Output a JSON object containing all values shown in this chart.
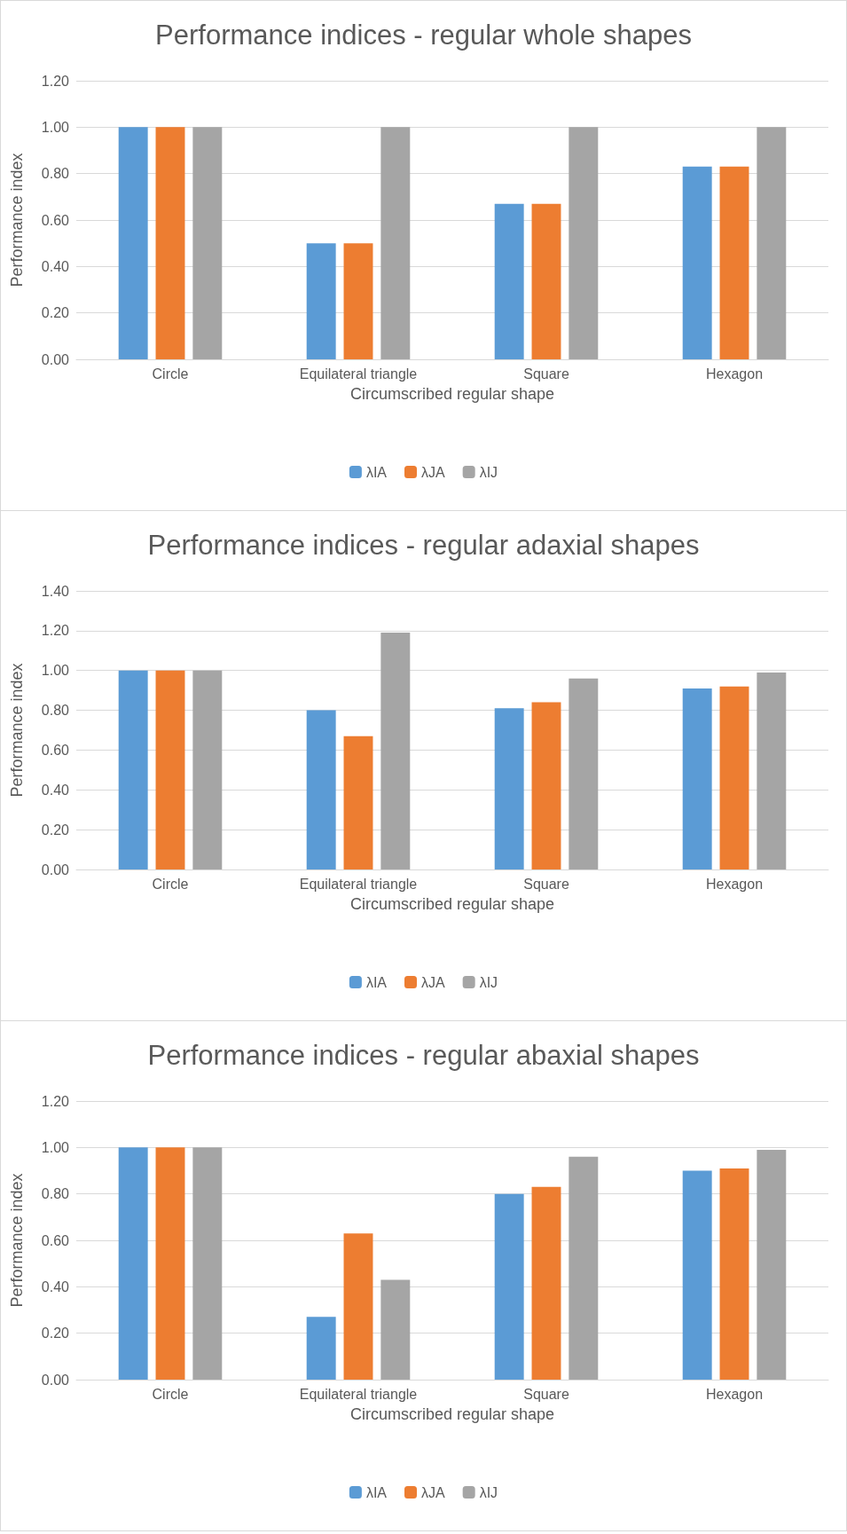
{
  "chart_data": [
    {
      "type": "bar",
      "title": "Performance indices - regular whole shapes",
      "xlabel": "Circumscribed regular shape",
      "ylabel": "Performance index",
      "categories": [
        "Circle",
        "Equilateral triangle",
        "Square",
        "Hexagon"
      ],
      "series": [
        {
          "name": "λIA",
          "color": "#5b9bd5",
          "values": [
            1.0,
            0.5,
            0.67,
            0.83
          ]
        },
        {
          "name": "λJA",
          "color": "#ed7d31",
          "values": [
            1.0,
            0.5,
            0.67,
            0.83
          ]
        },
        {
          "name": "λIJ",
          "color": "#a5a5a5",
          "values": [
            1.0,
            1.0,
            1.0,
            1.0
          ]
        }
      ],
      "ylim": [
        0,
        1.2
      ],
      "yticks": [
        {
          "value": 0,
          "label": "0.00"
        },
        {
          "value": 0.2,
          "label": "0.20"
        },
        {
          "value": 0.4,
          "label": "0.40"
        },
        {
          "value": 0.6,
          "label": "0.60"
        },
        {
          "value": 0.8,
          "label": "0.80"
        },
        {
          "value": 1,
          "label": "1.00"
        },
        {
          "value": 1.2,
          "label": "1.20"
        }
      ],
      "grid": "y",
      "legend": "bottom"
    },
    {
      "type": "bar",
      "title": "Performance indices - regular adaxial shapes",
      "xlabel": "Circumscribed regular shape",
      "ylabel": "Performance index",
      "categories": [
        "Circle",
        "Equilateral triangle",
        "Square",
        "Hexagon"
      ],
      "series": [
        {
          "name": "λIA",
          "color": "#5b9bd5",
          "values": [
            1.0,
            0.8,
            0.81,
            0.91
          ]
        },
        {
          "name": "λJA",
          "color": "#ed7d31",
          "values": [
            1.0,
            0.67,
            0.84,
            0.92
          ]
        },
        {
          "name": "λIJ",
          "color": "#a5a5a5",
          "values": [
            1.0,
            1.19,
            0.96,
            0.99
          ]
        }
      ],
      "ylim": [
        0,
        1.4
      ],
      "yticks": [
        {
          "value": 0,
          "label": "0.00"
        },
        {
          "value": 0.2,
          "label": "0.20"
        },
        {
          "value": 0.4,
          "label": "0.40"
        },
        {
          "value": 0.6,
          "label": "0.60"
        },
        {
          "value": 0.8,
          "label": "0.80"
        },
        {
          "value": 1,
          "label": "1.00"
        },
        {
          "value": 1.2,
          "label": "1.20"
        },
        {
          "value": 1.4,
          "label": "1.40"
        }
      ],
      "grid": "y",
      "legend": "bottom"
    },
    {
      "type": "bar",
      "title": "Performance indices - regular abaxial shapes",
      "xlabel": "Circumscribed regular shape",
      "ylabel": "Performance index",
      "categories": [
        "Circle",
        "Equilateral triangle",
        "Square",
        "Hexagon"
      ],
      "series": [
        {
          "name": "λIA",
          "color": "#5b9bd5",
          "values": [
            1.0,
            0.27,
            0.8,
            0.9
          ]
        },
        {
          "name": "λJA",
          "color": "#ed7d31",
          "values": [
            1.0,
            0.63,
            0.83,
            0.91
          ]
        },
        {
          "name": "λIJ",
          "color": "#a5a5a5",
          "values": [
            1.0,
            0.43,
            0.96,
            0.99
          ]
        }
      ],
      "ylim": [
        0,
        1.2
      ],
      "yticks": [
        {
          "value": 0,
          "label": "0.00"
        },
        {
          "value": 0.2,
          "label": "0.20"
        },
        {
          "value": 0.4,
          "label": "0.40"
        },
        {
          "value": 0.6,
          "label": "0.60"
        },
        {
          "value": 0.8,
          "label": "0.80"
        },
        {
          "value": 1,
          "label": "1.00"
        },
        {
          "value": 1.2,
          "label": "1.20"
        }
      ],
      "grid": "y",
      "legend": "bottom"
    }
  ]
}
